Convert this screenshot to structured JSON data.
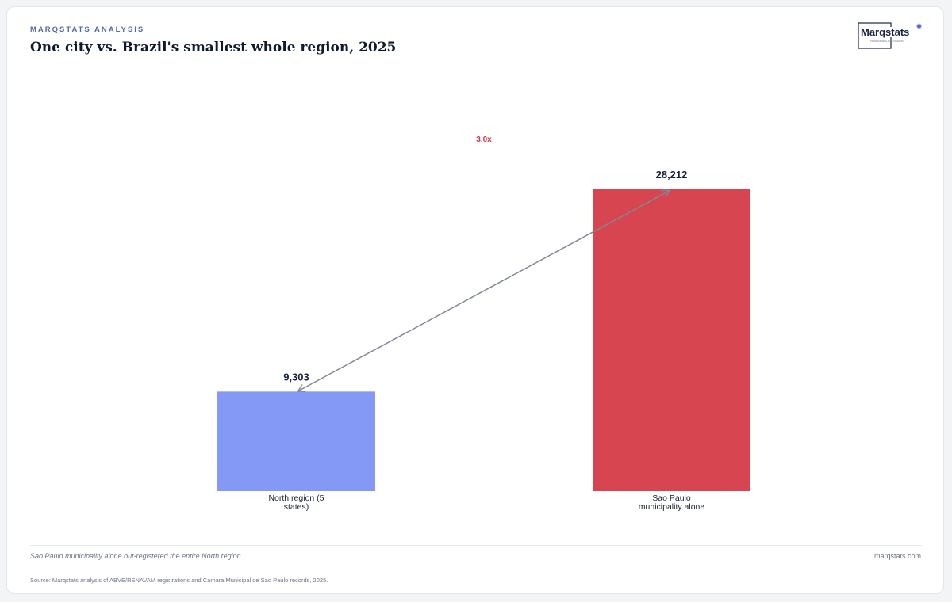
{
  "header": {
    "kicker": "MARQSTATS ANALYSIS",
    "title": "One city vs. Brazil's smallest whole region, 2025"
  },
  "logo": {
    "wordmark": "Marqstats",
    "tagline": "TRANSFORMING AUTO INSIGHTS"
  },
  "chart_data": {
    "type": "bar",
    "categories": [
      "North region (5 states)",
      "Sao Paulo municipality alone"
    ],
    "category_lines": [
      [
        "North region (5",
        "states)"
      ],
      [
        "Sao Paulo",
        "municipality alone"
      ]
    ],
    "values": [
      9303,
      28212
    ],
    "value_labels": [
      "9,303",
      "28,212"
    ],
    "colors": [
      "#8399f5",
      "#d64550"
    ],
    "ylim": [
      0,
      29500
    ],
    "grid": false,
    "annotation": {
      "text": "3.0x",
      "color": "#cc3a45",
      "arrow_color": "#7f8898",
      "from_category": 0,
      "to_category": 1
    }
  },
  "footer": {
    "caption": "Sao Paulo municipality alone out-registered the entire North region",
    "site": "marqstats.com",
    "source": "Source: Marqstats analysis of ABVE/RENAVAM registrations and Camara Municipal de Sao Paulo records, 2025."
  }
}
